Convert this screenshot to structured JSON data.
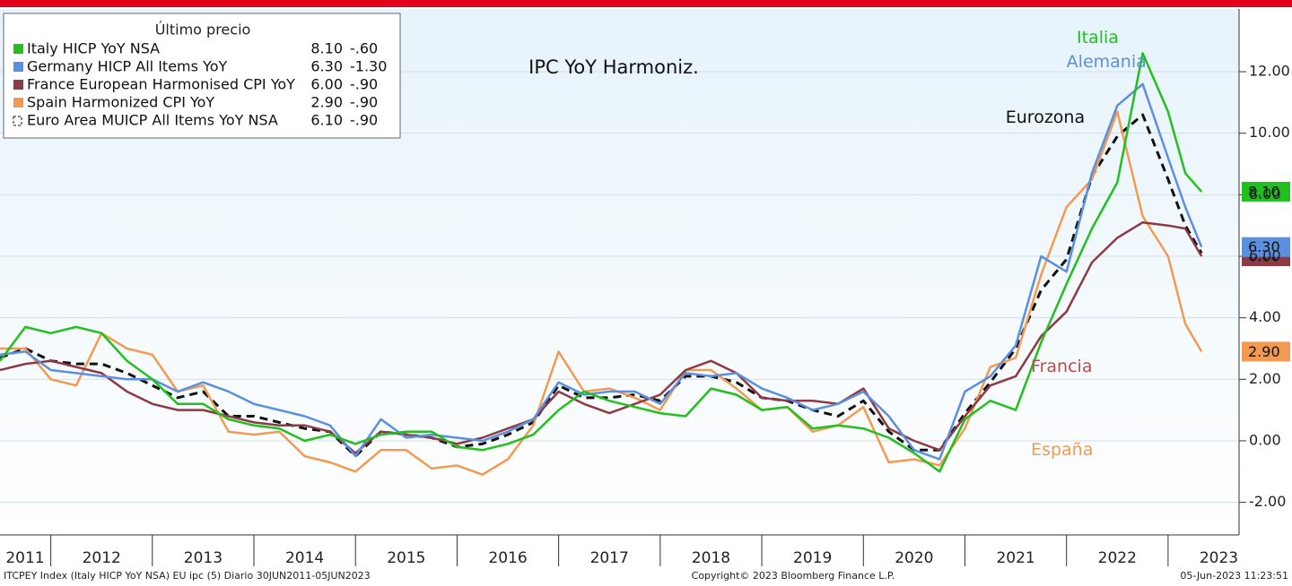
{
  "chart_data": {
    "type": "line",
    "title": "IPC YoY Harmoniz.",
    "legend_title": "Último precio",
    "x": [
      2011.5,
      2011.75,
      2012,
      2012.25,
      2012.5,
      2012.75,
      2013,
      2013.25,
      2013.5,
      2013.75,
      2014,
      2014.25,
      2014.5,
      2014.75,
      2015,
      2015.25,
      2015.5,
      2015.75,
      2016,
      2016.25,
      2016.5,
      2016.75,
      2017,
      2017.25,
      2017.5,
      2017.75,
      2018,
      2018.25,
      2018.5,
      2018.75,
      2019,
      2019.25,
      2019.5,
      2019.75,
      2020,
      2020.25,
      2020.5,
      2020.75,
      2021,
      2021.25,
      2021.5,
      2021.75,
      2022,
      2022.25,
      2022.5,
      2022.75,
      2023,
      2023.17,
      2023.33
    ],
    "series": [
      {
        "name": "Italy HICP YoY NSA",
        "color": "#22c01e",
        "dashed": false,
        "last_label": "8.10",
        "last": 8.1,
        "change_label": "-.60",
        "change": -0.6,
        "axis_tag": true,
        "values": [
          2.6,
          3.7,
          3.5,
          3.7,
          3.5,
          2.6,
          2.0,
          1.2,
          1.2,
          0.7,
          0.5,
          0.4,
          0.0,
          0.2,
          -0.1,
          0.2,
          0.3,
          0.3,
          -0.2,
          -0.3,
          -0.1,
          0.2,
          1.0,
          1.6,
          1.3,
          1.1,
          0.9,
          0.8,
          1.7,
          1.5,
          1.0,
          1.1,
          0.4,
          0.5,
          0.4,
          0.1,
          -0.4,
          -1.0,
          0.7,
          1.3,
          1.0,
          3.2,
          5.1,
          6.9,
          8.4,
          12.6,
          10.7,
          8.7,
          8.1
        ]
      },
      {
        "name": "Germany HICP All Items YoY",
        "color": "#5b8fe0",
        "dashed": false,
        "last_label": "6.30",
        "last": 6.3,
        "change_label": "-1.30",
        "change": -1.3,
        "axis_tag": true,
        "values": [
          2.8,
          2.9,
          2.3,
          2.2,
          2.1,
          2.0,
          2.0,
          1.6,
          1.9,
          1.6,
          1.2,
          1.0,
          0.8,
          0.5,
          -0.5,
          0.7,
          0.1,
          0.2,
          0.1,
          0.0,
          0.3,
          0.7,
          1.9,
          1.5,
          1.6,
          1.6,
          1.2,
          2.2,
          2.1,
          2.2,
          1.7,
          1.4,
          1.0,
          1.2,
          1.6,
          0.8,
          -0.3,
          -0.6,
          1.6,
          2.1,
          3.1,
          6.0,
          5.5,
          8.7,
          10.9,
          11.6,
          9.2,
          7.6,
          6.3
        ]
      },
      {
        "name": "France European Harmonised CPI YoY",
        "color": "#8e3a45",
        "dashed": false,
        "last_label": "6.00",
        "last": 6.0,
        "change_label": "-.90",
        "change": -0.9,
        "axis_tag": true,
        "values": [
          2.3,
          2.5,
          2.6,
          2.4,
          2.2,
          1.6,
          1.2,
          1.0,
          1.0,
          0.8,
          0.6,
          0.5,
          0.5,
          0.3,
          -0.4,
          0.3,
          0.2,
          0.1,
          -0.1,
          0.1,
          0.4,
          0.7,
          1.6,
          1.2,
          0.9,
          1.2,
          1.5,
          2.3,
          2.6,
          2.2,
          1.4,
          1.3,
          1.3,
          1.2,
          1.7,
          0.4,
          0.0,
          -0.3,
          0.8,
          1.8,
          2.1,
          3.4,
          4.2,
          5.8,
          6.6,
          7.1,
          7.0,
          6.9,
          6.0
        ]
      },
      {
        "name": "Spain Harmonized CPI YoY",
        "color": "#f39a52",
        "dashed": false,
        "last_label": "2.90",
        "last": 2.9,
        "change_label": "-.90",
        "change": -0.9,
        "axis_tag": true,
        "values": [
          3.0,
          3.0,
          2.0,
          1.8,
          3.5,
          3.0,
          2.8,
          1.6,
          1.8,
          0.3,
          0.2,
          0.3,
          -0.5,
          -0.7,
          -1.0,
          -0.3,
          -0.3,
          -0.9,
          -0.8,
          -1.1,
          -0.6,
          0.5,
          2.9,
          1.6,
          1.7,
          1.4,
          1.0,
          2.3,
          2.3,
          1.7,
          1.0,
          1.1,
          0.3,
          0.5,
          1.1,
          -0.7,
          -0.6,
          -0.8,
          0.4,
          2.4,
          2.7,
          5.4,
          7.6,
          8.5,
          10.7,
          7.3,
          6.0,
          3.8,
          2.9
        ]
      },
      {
        "name": "Euro Area MUICP All Items YoY NSA",
        "color": "#111111",
        "dashed": true,
        "last_label": "6.10",
        "last": 6.1,
        "change_label": "-.90",
        "change": -0.9,
        "axis_tag": false,
        "values": [
          2.7,
          3.0,
          2.6,
          2.5,
          2.5,
          2.2,
          1.8,
          1.4,
          1.6,
          0.8,
          0.8,
          0.6,
          0.4,
          0.3,
          -0.5,
          0.3,
          0.2,
          0.1,
          -0.2,
          -0.1,
          0.2,
          0.6,
          1.8,
          1.4,
          1.4,
          1.5,
          1.3,
          2.1,
          2.1,
          1.9,
          1.4,
          1.3,
          1.0,
          0.8,
          1.3,
          0.3,
          -0.3,
          -0.3,
          0.9,
          1.9,
          3.0,
          4.9,
          5.9,
          8.6,
          9.9,
          10.6,
          8.5,
          7.0,
          6.1
        ]
      }
    ],
    "annotations": [
      {
        "text": "Italia",
        "color": "#22c01e",
        "x": 2022.1,
        "y": 13.1
      },
      {
        "text": "Alemania",
        "color": "#5b8fe0",
        "x": 2022.0,
        "y": 12.3
      },
      {
        "text": "Eurozona",
        "color": "#111111",
        "x": 2021.4,
        "y": 10.5
      },
      {
        "text": "Francia",
        "color": "#c0484e",
        "x": 2021.65,
        "y": 2.4
      },
      {
        "text": "España",
        "color": "#f39a52",
        "x": 2021.65,
        "y": -0.3
      }
    ],
    "xlim": [
      2011.5,
      2023.69
    ],
    "xticks": [
      2011,
      2012,
      2013,
      2014,
      2015,
      2016,
      2017,
      2018,
      2019,
      2020,
      2021,
      2022,
      2023
    ],
    "ylim": [
      -3.06,
      14.04
    ],
    "yticks": [
      {
        "value": -2,
        "label": "-2.00"
      },
      {
        "value": 0,
        "label": "0.00"
      },
      {
        "value": 2,
        "label": "2.00"
      },
      {
        "value": 4,
        "label": "4.00"
      },
      {
        "value": 6,
        "label": "6.00"
      },
      {
        "value": 8,
        "label": "8.00"
      },
      {
        "value": 10,
        "label": "10.00"
      },
      {
        "value": 12,
        "label": "12.00"
      }
    ],
    "grid": true,
    "footer_left": "ITCPEY Index (Italy HICP YoY NSA) EU ipc (5)  Diario 30JUN2011-05JUN2023",
    "footer_center": "Copyright© 2023 Bloomberg Finance L.P.",
    "footer_right": "05-Jun-2023 11:23:51"
  }
}
